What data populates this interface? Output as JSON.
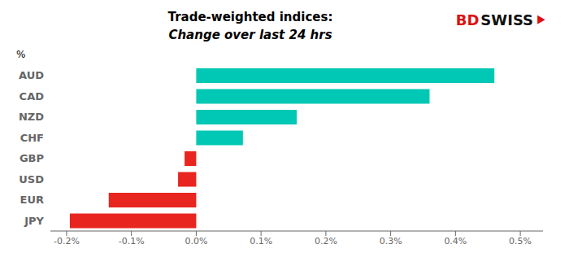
{
  "chart_data": {
    "type": "bar",
    "orientation": "horizontal",
    "title": "Trade-weighted indices:",
    "subtitle": "Change over last 24 hrs",
    "categories": [
      "AUD",
      "CAD",
      "NZD",
      "CHF",
      "GBP",
      "USD",
      "EUR",
      "JPY"
    ],
    "values": [
      0.0046,
      0.0036,
      0.00155,
      0.00072,
      -0.00018,
      -0.00028,
      -0.00135,
      -0.00195
    ],
    "colors": [
      "#00C8B4",
      "#00C8B4",
      "#00C8B4",
      "#00C8B4",
      "#E8251E",
      "#E8251E",
      "#E8251E",
      "#E8251E"
    ],
    "xlim": [
      -0.00225,
      0.00535
    ],
    "xticks": [
      {
        "value": -0.002,
        "label": "-0.2%"
      },
      {
        "value": -0.001,
        "label": "-0.1%"
      },
      {
        "value": 0.0,
        "label": "0.0%"
      },
      {
        "value": 0.001,
        "label": "0.1%"
      },
      {
        "value": 0.002,
        "label": "0.2%"
      },
      {
        "value": 0.003,
        "label": "0.3%"
      },
      {
        "value": 0.004,
        "label": "0.4%"
      },
      {
        "value": 0.005,
        "label": "0.5%"
      }
    ],
    "grid": false,
    "annotations": [
      {
        "text": "%"
      },
      {
        "text": "BD",
        "color": "#DD1111"
      },
      {
        "text": "SWISS",
        "color": "#111111"
      },
      {
        "text": "⯈",
        "color": "#DD1111"
      }
    ]
  }
}
